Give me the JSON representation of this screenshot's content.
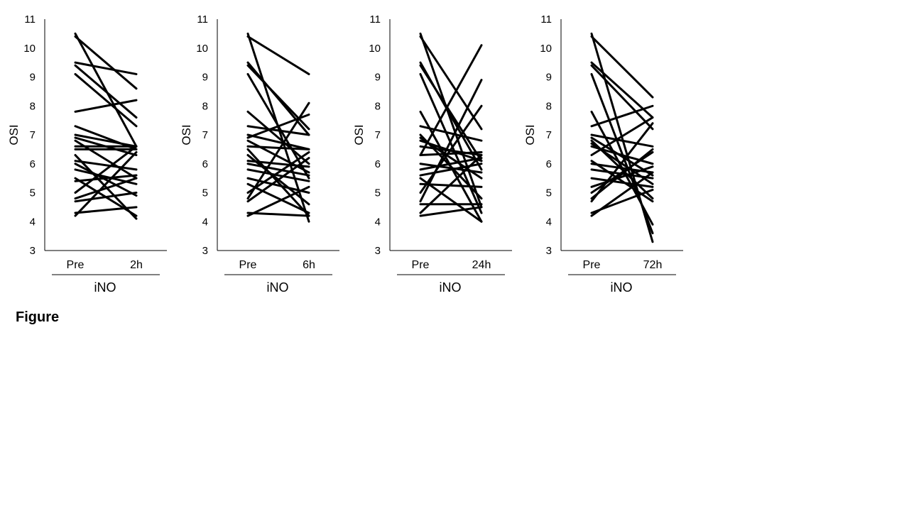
{
  "figure": {
    "caption": "Figure"
  },
  "chart_data": [
    {
      "type": "line",
      "ylabel": "OSI",
      "xgroup_label": "iNO",
      "categories": [
        "Pre",
        "2h"
      ],
      "ylim": [
        3,
        11
      ],
      "yticks": [
        3,
        4,
        5,
        6,
        7,
        8,
        9,
        10,
        11
      ],
      "grid": false,
      "pairs": [
        [
          10.5,
          6.6
        ],
        [
          10.4,
          8.6
        ],
        [
          9.5,
          9.1
        ],
        [
          9.4,
          7.6
        ],
        [
          9.1,
          7.3
        ],
        [
          7.8,
          8.2
        ],
        [
          7.3,
          6.5
        ],
        [
          7.0,
          6.6
        ],
        [
          6.9,
          6.3
        ],
        [
          6.8,
          5.5
        ],
        [
          6.6,
          6.6
        ],
        [
          6.5,
          6.5
        ],
        [
          6.3,
          4.1
        ],
        [
          6.1,
          5.8
        ],
        [
          6.0,
          4.9
        ],
        [
          5.8,
          5.3
        ],
        [
          5.5,
          4.2
        ],
        [
          5.4,
          5.6
        ],
        [
          5.0,
          6.6
        ],
        [
          4.8,
          5.5
        ],
        [
          4.7,
          5.0
        ],
        [
          4.3,
          4.5
        ],
        [
          4.2,
          6.4
        ]
      ]
    },
    {
      "type": "line",
      "ylabel": "OSI",
      "xgroup_label": "iNO",
      "categories": [
        "Pre",
        "6h"
      ],
      "ylim": [
        3,
        11
      ],
      "yticks": [
        3,
        4,
        5,
        6,
        7,
        8,
        9,
        10,
        11
      ],
      "grid": false,
      "pairs": [
        [
          10.5,
          4.0
        ],
        [
          10.4,
          9.1
        ],
        [
          9.5,
          7.0
        ],
        [
          9.4,
          7.2
        ],
        [
          9.1,
          5.5
        ],
        [
          7.8,
          6.0
        ],
        [
          7.3,
          7.0
        ],
        [
          7.0,
          6.5
        ],
        [
          6.9,
          7.7
        ],
        [
          6.8,
          5.7
        ],
        [
          6.6,
          6.5
        ],
        [
          6.5,
          4.2
        ],
        [
          6.3,
          4.6
        ],
        [
          6.1,
          5.9
        ],
        [
          6.0,
          5.6
        ],
        [
          5.8,
          5.4
        ],
        [
          5.5,
          5.0
        ],
        [
          5.3,
          4.3
        ],
        [
          5.0,
          6.4
        ],
        [
          4.8,
          8.1
        ],
        [
          4.7,
          6.2
        ],
        [
          4.3,
          4.2
        ],
        [
          4.2,
          5.2
        ]
      ]
    },
    {
      "type": "line",
      "ylabel": "OSI",
      "xgroup_label": "iNO",
      "categories": [
        "Pre",
        "24h"
      ],
      "ylim": [
        3,
        11
      ],
      "yticks": [
        3,
        4,
        5,
        6,
        7,
        8,
        9,
        10,
        11
      ],
      "grid": false,
      "pairs": [
        [
          10.5,
          4.5
        ],
        [
          10.4,
          7.2
        ],
        [
          9.5,
          5.8
        ],
        [
          9.4,
          6.1
        ],
        [
          9.1,
          4.3
        ],
        [
          7.8,
          4.0
        ],
        [
          7.3,
          6.8
        ],
        [
          7.0,
          4.8
        ],
        [
          6.9,
          5.5
        ],
        [
          6.8,
          6.1
        ],
        [
          6.6,
          6.3
        ],
        [
          6.3,
          6.4
        ],
        [
          6.3,
          10.1
        ],
        [
          6.0,
          5.7
        ],
        [
          5.8,
          6.2
        ],
        [
          5.6,
          6.0
        ],
        [
          5.5,
          4.0
        ],
        [
          5.3,
          5.2
        ],
        [
          5.0,
          8.0
        ],
        [
          4.7,
          8.9
        ],
        [
          4.6,
          4.6
        ],
        [
          4.3,
          6.3
        ],
        [
          4.2,
          4.5
        ]
      ]
    },
    {
      "type": "line",
      "ylabel": "OSI",
      "xgroup_label": "iNO",
      "categories": [
        "Pre",
        "72h"
      ],
      "ylim": [
        3,
        11
      ],
      "yticks": [
        3,
        4,
        5,
        6,
        7,
        8,
        9,
        10,
        11
      ],
      "grid": false,
      "pairs": [
        [
          10.5,
          3.3
        ],
        [
          10.4,
          8.3
        ],
        [
          9.5,
          7.6
        ],
        [
          9.4,
          7.2
        ],
        [
          9.1,
          3.6
        ],
        [
          7.8,
          3.9
        ],
        [
          7.3,
          8.0
        ],
        [
          7.0,
          6.6
        ],
        [
          6.9,
          5.6
        ],
        [
          6.8,
          4.8
        ],
        [
          6.7,
          5.3
        ],
        [
          6.6,
          6.0
        ],
        [
          6.3,
          7.6
        ],
        [
          6.1,
          4.7
        ],
        [
          6.0,
          5.7
        ],
        [
          5.8,
          5.5
        ],
        [
          5.5,
          5.2
        ],
        [
          5.2,
          5.9
        ],
        [
          5.0,
          6.4
        ],
        [
          4.8,
          6.5
        ],
        [
          4.7,
          7.4
        ],
        [
          4.3,
          5.1
        ],
        [
          4.2,
          5.7
        ]
      ]
    }
  ]
}
